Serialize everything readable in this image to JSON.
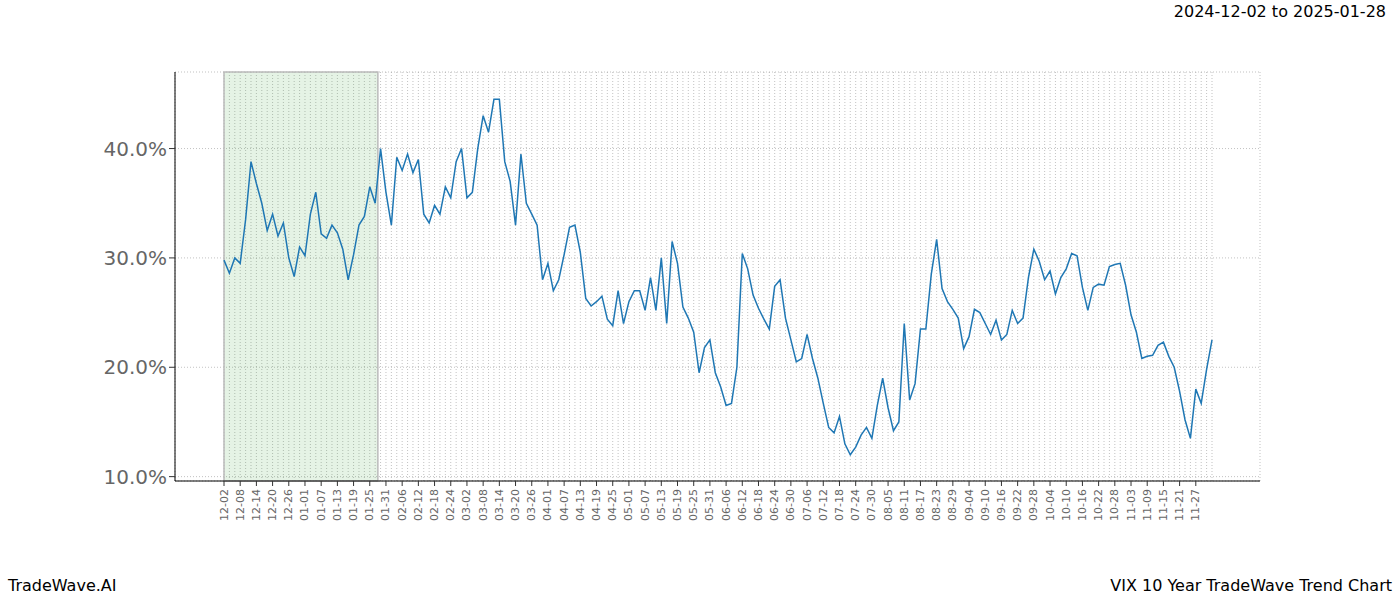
{
  "chart_data": {
    "type": "line",
    "title": "VIX 10 Year TradeWave Trend Chart",
    "subtitle": "2024-12-02 to 2025-01-28",
    "annotations": [
      "TradeWave.AI"
    ],
    "categories": [
      "12-02",
      null,
      null,
      "12-08",
      null,
      null,
      "12-14",
      null,
      null,
      "12-20",
      null,
      null,
      "12-26",
      null,
      null,
      "01-01",
      null,
      null,
      "01-07",
      null,
      null,
      "01-13",
      null,
      null,
      "01-19",
      null,
      null,
      "01-25",
      null,
      null,
      "01-31",
      null,
      null,
      "02-06",
      null,
      null,
      "02-12",
      null,
      null,
      "02-18",
      null,
      null,
      "02-24",
      null,
      null,
      "03-02",
      null,
      null,
      "03-08",
      null,
      null,
      "03-14",
      null,
      null,
      "03-20",
      null,
      null,
      "03-26",
      null,
      null,
      "04-01",
      null,
      null,
      "04-07",
      null,
      null,
      "04-13",
      null,
      null,
      "04-19",
      null,
      null,
      "04-25",
      null,
      null,
      "05-01",
      null,
      null,
      "05-07",
      null,
      null,
      "05-13",
      null,
      null,
      "05-19",
      null,
      null,
      "05-25",
      null,
      null,
      "05-31",
      null,
      null,
      "06-06",
      null,
      null,
      "06-12",
      null,
      null,
      "06-18",
      null,
      null,
      "06-24",
      null,
      null,
      "06-30",
      null,
      null,
      "07-06",
      null,
      null,
      "07-12",
      null,
      null,
      "07-18",
      null,
      null,
      "07-24",
      null,
      null,
      "07-30",
      null,
      null,
      "08-05",
      null,
      null,
      "08-11",
      null,
      null,
      "08-17",
      null,
      null,
      "08-23",
      null,
      null,
      "08-29",
      null,
      null,
      "09-04",
      null,
      null,
      "09-10",
      null,
      null,
      "09-16",
      null,
      null,
      "09-22",
      null,
      null,
      "09-28",
      null,
      null,
      "10-04",
      null,
      null,
      "10-10",
      null,
      null,
      "10-16",
      null,
      null,
      "10-22",
      null,
      null,
      "10-28",
      null,
      null,
      "11-03",
      null,
      null,
      "11-09",
      null,
      null,
      "11-15",
      null,
      null,
      "11-21",
      null,
      null,
      "11-27",
      null,
      null,
      null
    ],
    "values": [
      29.8,
      28.6,
      30.0,
      29.5,
      33.5,
      38.8,
      36.8,
      35.0,
      32.5,
      34.0,
      32.0,
      33.2,
      30.0,
      28.3,
      31.0,
      30.2,
      34.0,
      36.0,
      32.2,
      31.8,
      33.0,
      32.3,
      30.8,
      28.0,
      30.3,
      33.0,
      33.8,
      36.5,
      35.0,
      40.0,
      36.0,
      33.0,
      39.2,
      38.0,
      39.5,
      37.8,
      39.0,
      34.0,
      33.2,
      34.8,
      34.0,
      36.5,
      35.5,
      38.8,
      40.0,
      35.5,
      36.0,
      40.0,
      43.0,
      41.5,
      44.5,
      44.5,
      38.8,
      37.0,
      33.0,
      39.5,
      35.0,
      34.0,
      33.0,
      28,
      29.5,
      27,
      28,
      30.3,
      32.8,
      33,
      30.5,
      26.3,
      25.6,
      26,
      26.5,
      24.4,
      23.8,
      27,
      24,
      26,
      27,
      27,
      25.2,
      28.2,
      25.2,
      30,
      24,
      31.5,
      29.5,
      25.5,
      24.5,
      23.2,
      19.5,
      21.8,
      22.5,
      19.5,
      18.2,
      16.5,
      16.7,
      20,
      30.4,
      29,
      26.6,
      25.4,
      24.4,
      23.5,
      27.4,
      28,
      24.5,
      22.5,
      20.5,
      20.8,
      23,
      20.8,
      19,
      16.7,
      14.5,
      14,
      15.5,
      13,
      12,
      12.7,
      13.8,
      14.5,
      13.5,
      16.5,
      19,
      16.3,
      14.2,
      15,
      24,
      17,
      18.5,
      23.5,
      23.5,
      28.5,
      31.7,
      27.2,
      26,
      25.3,
      24.5,
      21.7,
      22.8,
      25.3,
      25,
      24,
      23,
      24.3,
      22.5,
      23,
      25.2,
      24,
      24.5,
      28.2,
      30.8,
      29.7,
      28,
      28.8,
      26.7,
      28.2,
      29,
      30.4,
      30.2,
      27.3,
      25.2,
      27.3,
      27.6,
      27.5,
      29.2,
      29.4,
      29.5,
      27.5,
      24.8,
      23.2,
      20.8,
      21,
      21.1,
      22,
      22.3,
      21,
      20,
      17.8,
      15.2,
      13.5,
      18,
      16.7,
      19.8,
      22.5
    ],
    "color": "#1f77b4",
    "ylim": [
      9.6,
      47.0
    ],
    "yticks": [
      {
        "value": 10,
        "label": "10.0%"
      },
      {
        "value": 20,
        "label": "20.0%"
      },
      {
        "value": 30,
        "label": "30.0%"
      },
      {
        "value": 40,
        "label": "40.0%"
      }
    ],
    "grid": true,
    "highlight": [
      "12-02",
      "01-28"
    ]
  }
}
